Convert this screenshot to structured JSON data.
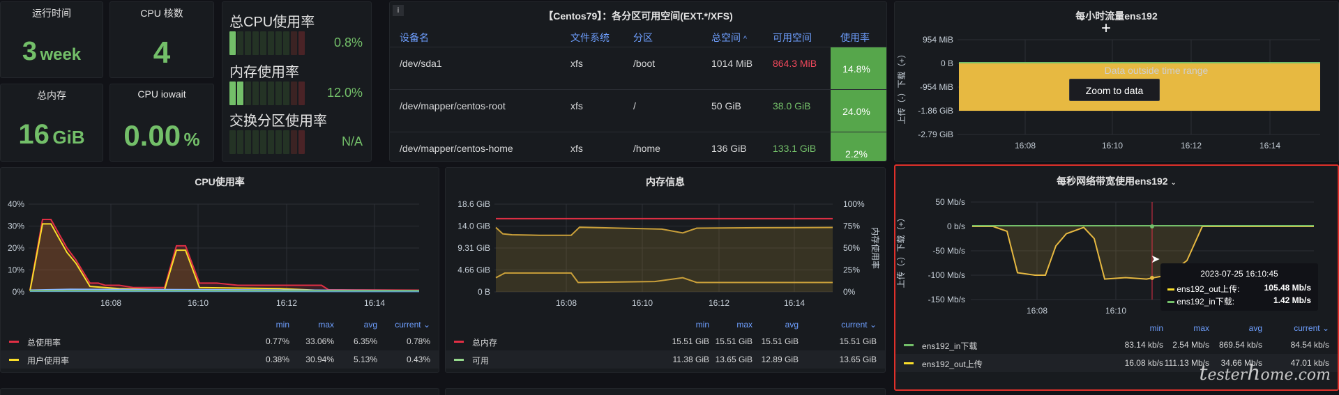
{
  "stats": {
    "uptime": {
      "title": "运行时间",
      "value": "3",
      "unit": "week"
    },
    "cpu_cores": {
      "title": "CPU 核数",
      "value": "4"
    },
    "total_mem": {
      "title": "总内存",
      "value": "16",
      "unit": "GiB"
    },
    "iowait": {
      "title": "CPU iowait",
      "value": "0.00",
      "unit": "%"
    }
  },
  "gauges": [
    {
      "label": "总CPU使用率",
      "value": "0.8%",
      "fill": 0.008
    },
    {
      "label": "内存使用率",
      "value": "12.0%",
      "fill": 0.12
    },
    {
      "label": "交换分区使用率",
      "value": "N/A",
      "fill": 0
    }
  ],
  "disk": {
    "title": "【Centos79】：各分区可用空间(EXT.*/XFS)",
    "info_icon": "i",
    "columns": [
      "设备名",
      "文件系统",
      "分区",
      "总空间",
      "可用空间",
      "使用率"
    ],
    "sort_indicator": "^",
    "rows": [
      {
        "device": "/dev/sda1",
        "fs": "xfs",
        "mount": "/boot",
        "size": "1014 MiB",
        "avail": "864.3 MiB",
        "avail_color": "#f2495c",
        "use": "14.8%"
      },
      {
        "device": "/dev/mapper/centos-root",
        "fs": "xfs",
        "mount": "/",
        "size": "50 GiB",
        "avail": "38.0 GiB",
        "avail_color": "#73bf69",
        "use": "24.0%"
      },
      {
        "device": "/dev/mapper/centos-home",
        "fs": "xfs",
        "mount": "/home",
        "size": "136 GiB",
        "avail": "133.1 GiB",
        "avail_color": "#73bf69",
        "use": "2.2%"
      }
    ]
  },
  "hourly": {
    "title": "每小时流量ens192",
    "yticks": [
      "954 MiB",
      "0 B",
      "-954 MiB",
      "-1.86 GiB",
      "-2.79 GiB"
    ],
    "xticks": [
      "16:08",
      "16:10",
      "16:12",
      "16:14"
    ],
    "ylabel": "上传（-）下载（+）",
    "message": "Data outside time range",
    "zoom_button": "Zoom to data"
  },
  "cpu": {
    "title": "CPU使用率",
    "yticks": [
      "40%",
      "30%",
      "20%",
      "10%",
      "0%"
    ],
    "xticks": [
      "16:08",
      "16:10",
      "16:12",
      "16:14"
    ],
    "legend_headers": [
      "min",
      "max",
      "avg",
      "current"
    ],
    "series": [
      {
        "name": "总使用率",
        "color": "#e02f44",
        "min": "0.77%",
        "max": "33.06%",
        "avg": "6.35%",
        "current": "0.78%"
      },
      {
        "name": "用户使用率",
        "color": "#fade2a",
        "min": "0.38%",
        "max": "30.94%",
        "avg": "5.13%",
        "current": "0.43%"
      }
    ]
  },
  "mem": {
    "title": "内存信息",
    "yticks": [
      "18.6 GiB",
      "14.0 GiB",
      "9.31 GiB",
      "4.66 GiB",
      "0 B"
    ],
    "yticks_right": [
      "100%",
      "75%",
      "50%",
      "25%",
      "0%"
    ],
    "ylabel_right": "内存使用率",
    "xticks": [
      "16:08",
      "16:10",
      "16:12",
      "16:14"
    ],
    "legend_headers": [
      "min",
      "max",
      "avg",
      "current"
    ],
    "series": [
      {
        "name": "总内存",
        "color": "#e02f44",
        "min": "15.51 GiB",
        "max": "15.51 GiB",
        "avg": "15.51 GiB",
        "current": "15.51 GiB"
      },
      {
        "name": "可用",
        "color": "#96d98d",
        "min": "11.38 GiB",
        "max": "13.65 GiB",
        "avg": "12.89 GiB",
        "current": "13.65 GiB"
      }
    ]
  },
  "net": {
    "title": "每秒网络带宽使用ens192",
    "yticks": [
      "50 Mb/s",
      "0 b/s",
      "-50 Mb/s",
      "-100 Mb/s",
      "-150 Mb/s"
    ],
    "xticks": [
      "16:08",
      "16:10"
    ],
    "ylabel": "上传（-）下载（+）",
    "legend_headers": [
      "min",
      "max",
      "avg",
      "current"
    ],
    "tooltip": {
      "time": "2023-07-25 16:10:45",
      "rows": [
        {
          "name": "ens192_out上传:",
          "value": "105.48 Mb/s",
          "color": "#fade2a"
        },
        {
          "name": "ens192_in下载:",
          "value": "1.42 Mb/s",
          "color": "#73bf69"
        }
      ]
    },
    "series": [
      {
        "name": "ens192_in下载",
        "color": "#73bf69",
        "min": "83.14 kb/s",
        "max": "2.54 Mb/s",
        "avg": "869.54 kb/s",
        "current": "84.54 kb/s"
      },
      {
        "name": "ens192_out上传",
        "color": "#fade2a",
        "min": "16.08 kb/s",
        "max": "111.13 Mb/s",
        "avg": "34.66 Mb/s",
        "current": "47.01 kb/s"
      }
    ]
  },
  "watermark": "testerhome.com"
}
